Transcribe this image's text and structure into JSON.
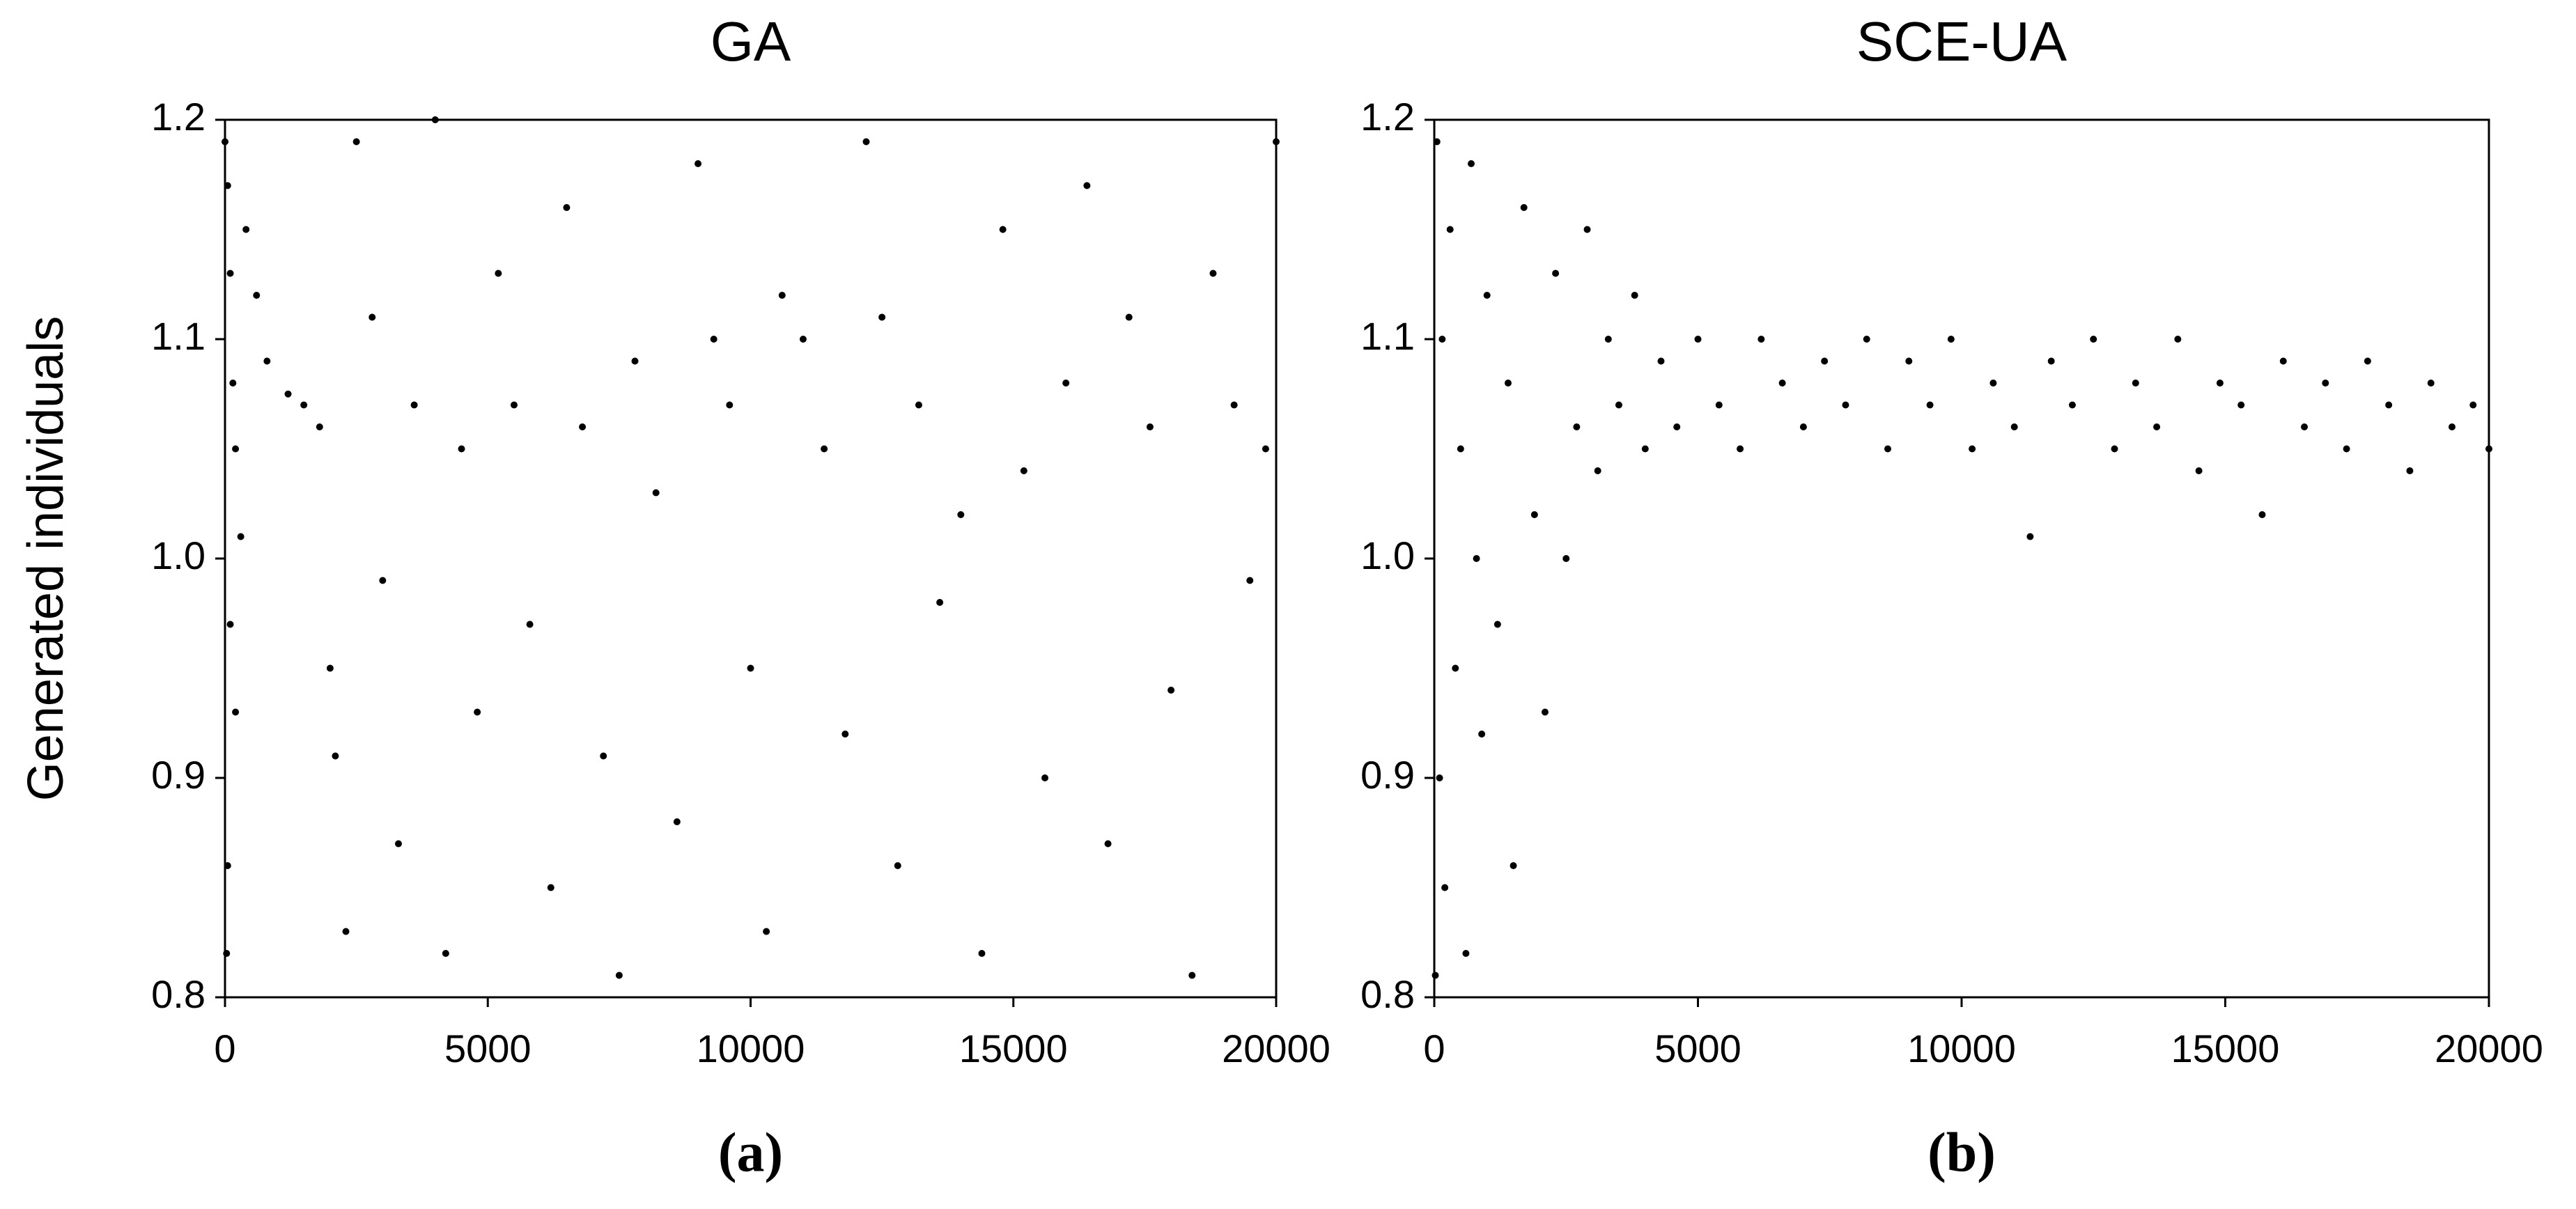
{
  "chart_data": [
    {
      "type": "scatter",
      "title": "GA",
      "label": "(a)",
      "ylabel": "Generated individuals",
      "color": "#000000",
      "xlim": [
        0,
        20000
      ],
      "ylim": [
        0.8,
        1.2
      ],
      "xticks": [
        0,
        5000,
        10000,
        15000,
        20000
      ],
      "yticks": [
        0.8,
        0.9,
        {
          "value": 1,
          "label": "1.0"
        },
        1.1,
        1.2
      ],
      "x": [
        0,
        50,
        100,
        150,
        200,
        300,
        100,
        200,
        50,
        30,
        400,
        600,
        800,
        1200,
        1500,
        1800,
        2000,
        2100,
        2300,
        2500,
        2800,
        3000,
        3300,
        3600,
        4000,
        4200,
        4500,
        4800,
        5200,
        5500,
        5800,
        6200,
        6500,
        6800,
        7200,
        7500,
        7800,
        8200,
        8600,
        9000,
        9300,
        9600,
        10000,
        10300,
        10600,
        11000,
        11400,
        11800,
        12200,
        12500,
        12800,
        13200,
        13600,
        14000,
        14400,
        14800,
        15200,
        15600,
        16000,
        16400,
        16800,
        17200,
        17600,
        18000,
        18400,
        18800,
        19200,
        19500,
        19800,
        20000
      ],
      "values": [
        1.19,
        1.17,
        1.13,
        1.08,
        1.05,
        1.01,
        0.97,
        0.93,
        0.86,
        0.82,
        1.15,
        1.12,
        1.09,
        1.075,
        1.07,
        1.06,
        0.95,
        0.91,
        0.83,
        1.19,
        1.11,
        0.99,
        0.87,
        1.07,
        1.2,
        0.82,
        1.05,
        0.93,
        1.13,
        1.07,
        0.97,
        0.85,
        1.16,
        1.06,
        0.91,
        0.81,
        1.09,
        1.03,
        0.88,
        1.18,
        1.1,
        1.07,
        0.95,
        0.83,
        1.12,
        1.1,
        1.05,
        0.92,
        1.19,
        1.11,
        0.86,
        1.07,
        0.98,
        1.02,
        0.82,
        1.15,
        1.04,
        0.9,
        1.08,
        1.17,
        0.87,
        1.11,
        1.06,
        0.94,
        0.81,
        1.13,
        1.07,
        0.99,
        1.05,
        1.19
      ]
    },
    {
      "type": "scatter",
      "title": "SCE-UA",
      "label": "(b)",
      "color": "#000000",
      "xlim": [
        0,
        20000
      ],
      "ylim": [
        0.8,
        1.2
      ],
      "xticks": [
        0,
        5000,
        10000,
        15000,
        20000
      ],
      "yticks": [
        0.8,
        0.9,
        {
          "value": 1,
          "label": "1.0"
        },
        1.1,
        1.2
      ],
      "x": [
        20,
        50,
        100,
        150,
        200,
        300,
        400,
        500,
        600,
        700,
        800,
        900,
        1000,
        1200,
        1400,
        1500,
        1700,
        1900,
        2100,
        2300,
        2500,
        2700,
        2900,
        3100,
        3300,
        3500,
        3800,
        4000,
        4300,
        4600,
        5000,
        5400,
        5800,
        6200,
        6600,
        7000,
        7400,
        7800,
        8200,
        8600,
        9000,
        9400,
        9800,
        10200,
        10600,
        11000,
        11300,
        11700,
        12100,
        12500,
        12900,
        13300,
        13700,
        14100,
        14500,
        14900,
        15300,
        15700,
        16100,
        16500,
        16900,
        17300,
        17700,
        18100,
        18500,
        18900,
        19300,
        19700,
        20000
      ],
      "values": [
        0.81,
        1.19,
        0.9,
        1.1,
        0.85,
        1.15,
        0.95,
        1.05,
        0.82,
        1.18,
        1.0,
        0.92,
        1.12,
        0.97,
        1.08,
        0.86,
        1.16,
        1.02,
        0.93,
        1.13,
        1.0,
        1.06,
        1.15,
        1.04,
        1.1,
        1.07,
        1.12,
        1.05,
        1.09,
        1.06,
        1.1,
        1.07,
        1.05,
        1.1,
        1.08,
        1.06,
        1.09,
        1.07,
        1.1,
        1.05,
        1.09,
        1.07,
        1.1,
        1.05,
        1.08,
        1.06,
        1.01,
        1.09,
        1.07,
        1.1,
        1.05,
        1.08,
        1.06,
        1.1,
        1.04,
        1.08,
        1.07,
        1.02,
        1.09,
        1.06,
        1.08,
        1.05,
        1.09,
        1.07,
        1.04,
        1.08,
        1.06,
        1.07,
        1.05
      ]
    }
  ]
}
